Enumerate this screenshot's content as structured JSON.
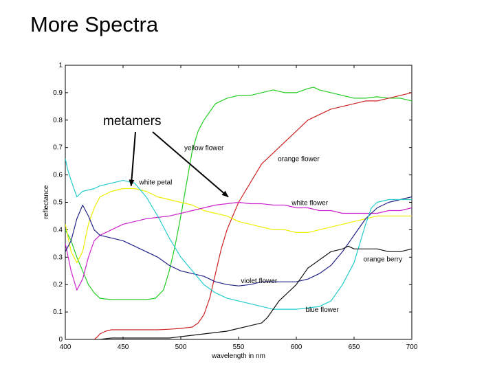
{
  "slide": {
    "title": "More Spectra"
  },
  "chart_data": {
    "type": "line",
    "title": "",
    "xlabel": "wavelength in nm",
    "ylabel": "reflectance",
    "xlim": [
      400,
      700
    ],
    "ylim": [
      0,
      1
    ],
    "xticks": [
      400,
      450,
      500,
      550,
      600,
      650,
      700
    ],
    "yticks": [
      0,
      0.1,
      0.2,
      0.3,
      0.4,
      0.5,
      0.6,
      0.7,
      0.8,
      0.9,
      1
    ],
    "xtick_labels": [
      "400",
      "450",
      "500",
      "550",
      "600",
      "650",
      "700"
    ],
    "ytick_labels": [
      "0",
      "0.1",
      "0.2",
      "0.3",
      "0.4",
      "0.5",
      "0.6",
      "0.7",
      "0.8",
      "0.9",
      "1"
    ],
    "series": [
      {
        "name": "yellow flower",
        "color": "#22cc22",
        "x": [
          400,
          405,
          410,
          415,
          420,
          425,
          430,
          440,
          450,
          460,
          470,
          478,
          485,
          490,
          495,
          500,
          505,
          510,
          515,
          520,
          525,
          530,
          540,
          550,
          560,
          570,
          580,
          590,
          600,
          610,
          615,
          620,
          630,
          640,
          650,
          660,
          670,
          680,
          690,
          700
        ],
        "y": [
          0.4,
          0.36,
          0.3,
          0.25,
          0.2,
          0.17,
          0.15,
          0.145,
          0.145,
          0.145,
          0.145,
          0.15,
          0.18,
          0.25,
          0.34,
          0.45,
          0.57,
          0.69,
          0.76,
          0.8,
          0.83,
          0.86,
          0.88,
          0.89,
          0.89,
          0.9,
          0.91,
          0.9,
          0.9,
          0.915,
          0.92,
          0.91,
          0.9,
          0.89,
          0.88,
          0.88,
          0.885,
          0.88,
          0.88,
          0.87
        ]
      },
      {
        "name": "orange flower",
        "color": "#cc2222",
        "x": [
          425,
          428,
          430,
          435,
          440,
          450,
          460,
          470,
          480,
          490,
          500,
          510,
          515,
          520,
          525,
          530,
          535,
          540,
          545,
          550,
          560,
          570,
          580,
          590,
          600,
          610,
          620,
          630,
          640,
          650,
          660,
          670,
          680,
          690,
          700
        ],
        "y": [
          0.0,
          0.01,
          0.02,
          0.03,
          0.035,
          0.035,
          0.035,
          0.035,
          0.035,
          0.037,
          0.04,
          0.045,
          0.06,
          0.09,
          0.15,
          0.24,
          0.33,
          0.4,
          0.45,
          0.5,
          0.57,
          0.64,
          0.68,
          0.72,
          0.76,
          0.8,
          0.82,
          0.84,
          0.85,
          0.86,
          0.87,
          0.87,
          0.88,
          0.89,
          0.9
        ]
      },
      {
        "name": "white petal",
        "color": "#eeee00",
        "x": [
          400,
          405,
          410,
          415,
          420,
          425,
          430,
          440,
          450,
          460,
          470,
          480,
          490,
          500,
          510,
          520,
          530,
          540,
          550,
          560,
          570,
          580,
          590,
          600,
          610,
          620,
          630,
          640,
          650,
          660,
          670,
          680,
          690,
          700
        ],
        "y": [
          0.42,
          0.32,
          0.28,
          0.32,
          0.42,
          0.48,
          0.52,
          0.54,
          0.55,
          0.55,
          0.54,
          0.52,
          0.51,
          0.5,
          0.49,
          0.47,
          0.46,
          0.45,
          0.43,
          0.42,
          0.41,
          0.4,
          0.4,
          0.39,
          0.39,
          0.4,
          0.41,
          0.42,
          0.43,
          0.44,
          0.45,
          0.45,
          0.45,
          0.45
        ]
      },
      {
        "name": "white flower",
        "color": "#cc22cc",
        "x": [
          400,
          405,
          410,
          415,
          420,
          425,
          430,
          440,
          450,
          460,
          470,
          480,
          490,
          500,
          510,
          520,
          530,
          540,
          550,
          560,
          570,
          580,
          590,
          600,
          610,
          620,
          630,
          640,
          650,
          660,
          670,
          680,
          690,
          700
        ],
        "y": [
          0.35,
          0.25,
          0.18,
          0.22,
          0.3,
          0.36,
          0.38,
          0.4,
          0.42,
          0.43,
          0.44,
          0.445,
          0.45,
          0.46,
          0.47,
          0.48,
          0.49,
          0.495,
          0.5,
          0.495,
          0.495,
          0.49,
          0.49,
          0.48,
          0.48,
          0.47,
          0.47,
          0.46,
          0.46,
          0.46,
          0.46,
          0.47,
          0.47,
          0.48
        ]
      },
      {
        "name": "violet flower",
        "color": "#222288",
        "x": [
          400,
          405,
          410,
          415,
          420,
          425,
          430,
          440,
          450,
          460,
          470,
          480,
          490,
          500,
          510,
          520,
          530,
          540,
          550,
          560,
          570,
          580,
          590,
          600,
          610,
          620,
          630,
          640,
          650,
          660,
          670,
          680,
          690,
          700
        ],
        "y": [
          0.32,
          0.36,
          0.44,
          0.49,
          0.45,
          0.4,
          0.38,
          0.37,
          0.36,
          0.34,
          0.32,
          0.3,
          0.27,
          0.25,
          0.24,
          0.23,
          0.21,
          0.2,
          0.195,
          0.2,
          0.21,
          0.21,
          0.21,
          0.21,
          0.22,
          0.24,
          0.27,
          0.32,
          0.38,
          0.44,
          0.48,
          0.5,
          0.51,
          0.52
        ]
      },
      {
        "name": "blue flower",
        "color": "#22cccc",
        "x": [
          400,
          402,
          405,
          410,
          415,
          420,
          425,
          430,
          440,
          450,
          460,
          470,
          480,
          490,
          500,
          510,
          520,
          530,
          540,
          550,
          560,
          570,
          580,
          590,
          600,
          610,
          620,
          630,
          640,
          650,
          655,
          660,
          665,
          670,
          680,
          690,
          700
        ],
        "y": [
          0.66,
          0.62,
          0.58,
          0.52,
          0.54,
          0.545,
          0.55,
          0.56,
          0.57,
          0.58,
          0.57,
          0.52,
          0.45,
          0.37,
          0.3,
          0.25,
          0.2,
          0.17,
          0.15,
          0.14,
          0.13,
          0.12,
          0.11,
          0.11,
          0.11,
          0.115,
          0.12,
          0.14,
          0.2,
          0.28,
          0.35,
          0.42,
          0.48,
          0.5,
          0.51,
          0.51,
          0.51
        ]
      },
      {
        "name": "orange berry",
        "color": "#111111",
        "x": [
          430,
          440,
          450,
          460,
          470,
          480,
          490,
          500,
          510,
          520,
          530,
          540,
          550,
          560,
          570,
          575,
          580,
          585,
          590,
          600,
          610,
          620,
          630,
          640,
          645,
          650,
          660,
          670,
          680,
          690,
          700
        ],
        "y": [
          0.0,
          0.005,
          0.005,
          0.005,
          0.005,
          0.005,
          0.005,
          0.01,
          0.015,
          0.02,
          0.025,
          0.03,
          0.04,
          0.05,
          0.06,
          0.08,
          0.11,
          0.14,
          0.16,
          0.2,
          0.26,
          0.29,
          0.32,
          0.33,
          0.34,
          0.33,
          0.33,
          0.33,
          0.32,
          0.32,
          0.33
        ]
      }
    ],
    "annotations": [
      {
        "text": "yellow flower",
        "x": 503,
        "y": 0.69
      },
      {
        "text": "orange flower",
        "x": 584,
        "y": 0.65
      },
      {
        "text": "white petal",
        "x": 464,
        "y": 0.565
      },
      {
        "text": "white flower",
        "x": 596,
        "y": 0.49
      },
      {
        "text": "violet flower",
        "x": 552,
        "y": 0.205
      },
      {
        "text": "blue flower",
        "x": 608,
        "y": 0.1
      },
      {
        "text": "orange berry",
        "x": 658,
        "y": 0.285
      }
    ],
    "callout": {
      "text": "metamers",
      "arrows": [
        {
          "to_x": 457,
          "to_y": 0.56
        },
        {
          "to_x": 541,
          "to_y": 0.52
        }
      ]
    }
  }
}
